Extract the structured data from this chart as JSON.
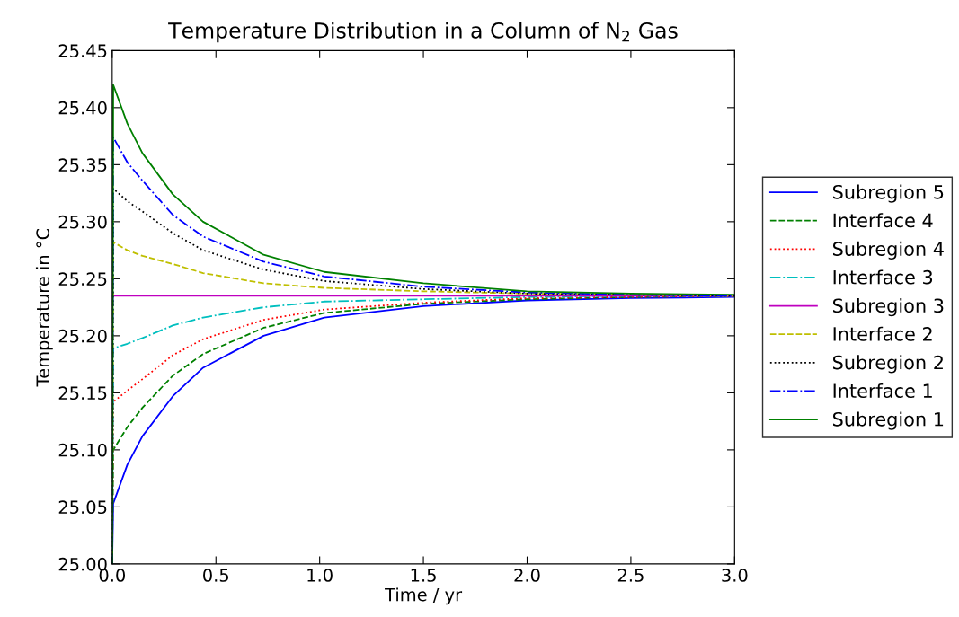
{
  "chart_data": {
    "type": "line",
    "title": "Temperature Distribution in a Column of N$_{2}$ Gas",
    "xlabel": "Time / yr",
    "ylabel": "Temperature in °C",
    "x": [
      0,
      0.005,
      0.073,
      0.146,
      0.292,
      0.438,
      0.73,
      1.022,
      1.5,
      2.0,
      2.5,
      3.0
    ],
    "series": [
      {
        "name": "Subregion 5",
        "color": "#0000ff",
        "line_style": "solid",
        "values": [
          25.0,
          25.053,
          25.087,
          25.112,
          25.147,
          25.172,
          25.2,
          25.216,
          25.226,
          25.231,
          25.233,
          25.234
        ]
      },
      {
        "name": "Interface 4",
        "color": "#008000",
        "line_style": "dashed",
        "values": [
          25.0,
          25.1,
          25.12,
          25.137,
          25.165,
          25.184,
          25.207,
          25.22,
          25.228,
          25.232,
          25.234,
          25.235
        ]
      },
      {
        "name": "Subregion 4",
        "color": "#ff0000",
        "line_style": "dotted",
        "values": [
          25.0,
          25.142,
          25.152,
          25.162,
          25.183,
          25.197,
          25.214,
          25.223,
          25.229,
          25.233,
          25.234,
          25.235
        ]
      },
      {
        "name": "Interface 3",
        "color": "#00bfbf",
        "line_style": "dashdot",
        "values": [
          25.0,
          25.189,
          25.193,
          25.198,
          25.209,
          25.216,
          25.225,
          25.23,
          25.232,
          25.234,
          25.235,
          25.235
        ]
      },
      {
        "name": "Subregion 3",
        "color": "#bf00bf",
        "line_style": "solid",
        "values": [
          25.235,
          25.235,
          25.235,
          25.235,
          25.235,
          25.235,
          25.235,
          25.235,
          25.235,
          25.235,
          25.235,
          25.235
        ]
      },
      {
        "name": "Interface 2",
        "color": "#bfbf00",
        "line_style": "dashed",
        "values": [
          25.0,
          25.282,
          25.275,
          25.27,
          25.263,
          25.255,
          25.246,
          25.242,
          25.239,
          25.237,
          25.236,
          25.235
        ]
      },
      {
        "name": "Subregion 2",
        "color": "#000000",
        "line_style": "dotted",
        "values": [
          25.0,
          25.329,
          25.318,
          25.309,
          25.29,
          25.275,
          25.258,
          25.248,
          25.241,
          25.237,
          25.236,
          25.235
        ]
      },
      {
        "name": "Interface 1",
        "color": "#0000ff",
        "line_style": "dashdot",
        "values": [
          25.0,
          25.374,
          25.352,
          25.336,
          25.306,
          25.287,
          25.265,
          25.252,
          25.243,
          25.238,
          25.236,
          25.235
        ]
      },
      {
        "name": "Subregion 1",
        "color": "#008000",
        "line_style": "solid",
        "values": [
          25.0,
          25.42,
          25.386,
          25.36,
          25.324,
          25.3,
          25.271,
          25.256,
          25.246,
          25.239,
          25.237,
          25.236
        ]
      }
    ],
    "xlim": [
      0,
      3.0
    ],
    "xticks": [
      {
        "value": 0,
        "label": "0.0"
      },
      0.5,
      {
        "value": 1,
        "label": "1.0"
      },
      1.5,
      {
        "value": 2,
        "label": "2.0"
      },
      2.5,
      {
        "value": 3,
        "label": "3.0"
      }
    ],
    "ylim": [
      25.0,
      25.45
    ],
    "yticks": [
      {
        "value": 25.0,
        "label": "25.00"
      },
      25.05,
      {
        "value": 25.1,
        "label": "25.10"
      },
      25.15,
      {
        "value": 25.2,
        "label": "25.20"
      },
      25.25,
      {
        "value": 25.3,
        "label": "25.30"
      },
      25.35,
      {
        "value": 25.4,
        "label": "25.40"
      },
      25.45
    ],
    "grid": false,
    "legend": "right",
    "marker": "none"
  }
}
